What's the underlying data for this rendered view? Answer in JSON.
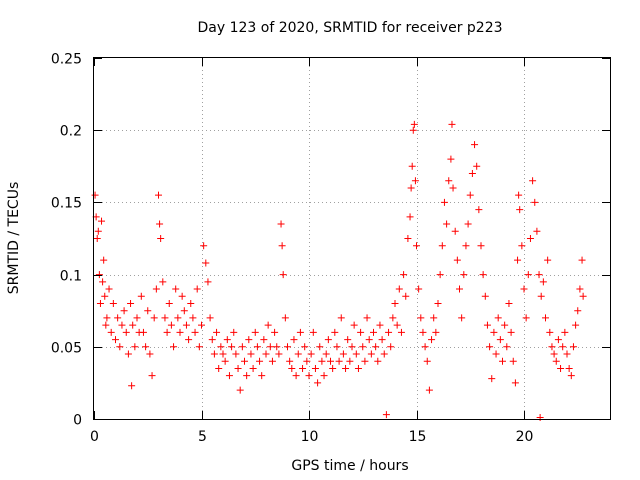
{
  "chart_data": {
    "type": "scatter",
    "title": "Day 123 of 2020, SRMTID for receiver p223",
    "xlabel": "GPS time / hours",
    "ylabel": "SRMTID / TECUs",
    "xlim": [
      0,
      24
    ],
    "ylim": [
      0,
      0.25
    ],
    "xticks": [
      0,
      5,
      10,
      15,
      20
    ],
    "xtick_labels": [
      "0",
      "5",
      "10",
      "15",
      "20"
    ],
    "yticks": [
      0,
      0.05,
      0.1,
      0.15,
      0.2,
      0.25
    ],
    "ytick_labels": [
      "0",
      "0.05",
      "0.1",
      "0.15",
      "0.2",
      "0.25"
    ],
    "grid": true,
    "marker": "+",
    "color": "#ff0000",
    "series": [
      {
        "name": "SRMTID",
        "points": [
          [
            0.05,
            0.155
          ],
          [
            0.1,
            0.14
          ],
          [
            0.15,
            0.125
          ],
          [
            0.2,
            0.13
          ],
          [
            0.25,
            0.1
          ],
          [
            0.3,
            0.08
          ],
          [
            0.35,
            0.137
          ],
          [
            0.4,
            0.095
          ],
          [
            0.45,
            0.11
          ],
          [
            0.5,
            0.085
          ],
          [
            0.55,
            0.065
          ],
          [
            0.6,
            0.07
          ],
          [
            0.7,
            0.09
          ],
          [
            0.8,
            0.06
          ],
          [
            0.9,
            0.08
          ],
          [
            1.0,
            0.055
          ],
          [
            1.1,
            0.07
          ],
          [
            1.2,
            0.05
          ],
          [
            1.3,
            0.065
          ],
          [
            1.4,
            0.075
          ],
          [
            1.5,
            0.06
          ],
          [
            1.6,
            0.045
          ],
          [
            1.7,
            0.08
          ],
          [
            1.75,
            0.023
          ],
          [
            1.8,
            0.065
          ],
          [
            1.9,
            0.05
          ],
          [
            2.0,
            0.07
          ],
          [
            2.1,
            0.06
          ],
          [
            2.2,
            0.085
          ],
          [
            2.3,
            0.06
          ],
          [
            2.4,
            0.05
          ],
          [
            2.5,
            0.075
          ],
          [
            2.6,
            0.045
          ],
          [
            2.7,
            0.03
          ],
          [
            2.8,
            0.07
          ],
          [
            2.9,
            0.09
          ],
          [
            3.0,
            0.155
          ],
          [
            3.05,
            0.135
          ],
          [
            3.1,
            0.125
          ],
          [
            3.2,
            0.095
          ],
          [
            3.3,
            0.07
          ],
          [
            3.4,
            0.06
          ],
          [
            3.5,
            0.08
          ],
          [
            3.6,
            0.065
          ],
          [
            3.7,
            0.05
          ],
          [
            3.8,
            0.09
          ],
          [
            3.9,
            0.07
          ],
          [
            4.0,
            0.06
          ],
          [
            4.1,
            0.085
          ],
          [
            4.2,
            0.075
          ],
          [
            4.3,
            0.065
          ],
          [
            4.4,
            0.055
          ],
          [
            4.5,
            0.08
          ],
          [
            4.6,
            0.07
          ],
          [
            4.7,
            0.06
          ],
          [
            4.8,
            0.09
          ],
          [
            4.9,
            0.05
          ],
          [
            5.0,
            0.065
          ],
          [
            5.1,
            0.12
          ],
          [
            5.2,
            0.108
          ],
          [
            5.3,
            0.095
          ],
          [
            5.4,
            0.07
          ],
          [
            5.5,
            0.055
          ],
          [
            5.6,
            0.045
          ],
          [
            5.7,
            0.06
          ],
          [
            5.8,
            0.035
          ],
          [
            5.9,
            0.05
          ],
          [
            6.0,
            0.045
          ],
          [
            6.1,
            0.04
          ],
          [
            6.2,
            0.055
          ],
          [
            6.3,
            0.03
          ],
          [
            6.4,
            0.05
          ],
          [
            6.5,
            0.06
          ],
          [
            6.6,
            0.045
          ],
          [
            6.7,
            0.035
          ],
          [
            6.8,
            0.02
          ],
          [
            6.9,
            0.05
          ],
          [
            7.0,
            0.04
          ],
          [
            7.1,
            0.03
          ],
          [
            7.2,
            0.055
          ],
          [
            7.3,
            0.045
          ],
          [
            7.4,
            0.035
          ],
          [
            7.5,
            0.06
          ],
          [
            7.6,
            0.05
          ],
          [
            7.7,
            0.04
          ],
          [
            7.8,
            0.03
          ],
          [
            7.9,
            0.055
          ],
          [
            8.0,
            0.045
          ],
          [
            8.1,
            0.065
          ],
          [
            8.2,
            0.05
          ],
          [
            8.3,
            0.04
          ],
          [
            8.4,
            0.06
          ],
          [
            8.5,
            0.05
          ],
          [
            8.6,
            0.045
          ],
          [
            8.7,
            0.135
          ],
          [
            8.75,
            0.12
          ],
          [
            8.8,
            0.1
          ],
          [
            8.9,
            0.07
          ],
          [
            9.0,
            0.05
          ],
          [
            9.1,
            0.04
          ],
          [
            9.2,
            0.035
          ],
          [
            9.3,
            0.055
          ],
          [
            9.4,
            0.03
          ],
          [
            9.5,
            0.045
          ],
          [
            9.6,
            0.06
          ],
          [
            9.7,
            0.035
          ],
          [
            9.8,
            0.05
          ],
          [
            9.9,
            0.04
          ],
          [
            10.0,
            0.03
          ],
          [
            10.1,
            0.045
          ],
          [
            10.2,
            0.06
          ],
          [
            10.3,
            0.035
          ],
          [
            10.4,
            0.025
          ],
          [
            10.5,
            0.05
          ],
          [
            10.6,
            0.04
          ],
          [
            10.7,
            0.03
          ],
          [
            10.8,
            0.045
          ],
          [
            10.9,
            0.055
          ],
          [
            11.0,
            0.04
          ],
          [
            11.1,
            0.035
          ],
          [
            11.2,
            0.06
          ],
          [
            11.3,
            0.05
          ],
          [
            11.4,
            0.04
          ],
          [
            11.5,
            0.07
          ],
          [
            11.6,
            0.045
          ],
          [
            11.7,
            0.035
          ],
          [
            11.8,
            0.055
          ],
          [
            11.9,
            0.04
          ],
          [
            12.0,
            0.05
          ],
          [
            12.1,
            0.065
          ],
          [
            12.2,
            0.045
          ],
          [
            12.3,
            0.035
          ],
          [
            12.4,
            0.06
          ],
          [
            12.5,
            0.05
          ],
          [
            12.6,
            0.04
          ],
          [
            12.7,
            0.07
          ],
          [
            12.8,
            0.055
          ],
          [
            12.9,
            0.045
          ],
          [
            13.0,
            0.06
          ],
          [
            13.1,
            0.05
          ],
          [
            13.2,
            0.04
          ],
          [
            13.3,
            0.065
          ],
          [
            13.4,
            0.055
          ],
          [
            13.5,
            0.045
          ],
          [
            13.6,
            0.003
          ],
          [
            13.7,
            0.06
          ],
          [
            13.8,
            0.05
          ],
          [
            13.9,
            0.07
          ],
          [
            14.0,
            0.08
          ],
          [
            14.1,
            0.065
          ],
          [
            14.2,
            0.09
          ],
          [
            14.3,
            0.06
          ],
          [
            14.4,
            0.1
          ],
          [
            14.5,
            0.085
          ],
          [
            14.6,
            0.125
          ],
          [
            14.7,
            0.14
          ],
          [
            14.75,
            0.16
          ],
          [
            14.8,
            0.175
          ],
          [
            14.85,
            0.2
          ],
          [
            14.9,
            0.204
          ],
          [
            14.95,
            0.165
          ],
          [
            15.0,
            0.12
          ],
          [
            15.1,
            0.09
          ],
          [
            15.2,
            0.07
          ],
          [
            15.3,
            0.06
          ],
          [
            15.4,
            0.05
          ],
          [
            15.5,
            0.04
          ],
          [
            15.6,
            0.02
          ],
          [
            15.7,
            0.055
          ],
          [
            15.8,
            0.07
          ],
          [
            15.9,
            0.06
          ],
          [
            16.0,
            0.08
          ],
          [
            16.1,
            0.1
          ],
          [
            16.2,
            0.12
          ],
          [
            16.3,
            0.15
          ],
          [
            16.4,
            0.135
          ],
          [
            16.5,
            0.165
          ],
          [
            16.6,
            0.18
          ],
          [
            16.65,
            0.204
          ],
          [
            16.7,
            0.16
          ],
          [
            16.8,
            0.13
          ],
          [
            16.9,
            0.11
          ],
          [
            17.0,
            0.09
          ],
          [
            17.1,
            0.07
          ],
          [
            17.2,
            0.1
          ],
          [
            17.3,
            0.12
          ],
          [
            17.4,
            0.135
          ],
          [
            17.5,
            0.155
          ],
          [
            17.6,
            0.17
          ],
          [
            17.7,
            0.19
          ],
          [
            17.8,
            0.175
          ],
          [
            17.9,
            0.145
          ],
          [
            18.0,
            0.12
          ],
          [
            18.1,
            0.1
          ],
          [
            18.2,
            0.085
          ],
          [
            18.3,
            0.065
          ],
          [
            18.4,
            0.05
          ],
          [
            18.5,
            0.028
          ],
          [
            18.6,
            0.06
          ],
          [
            18.7,
            0.045
          ],
          [
            18.8,
            0.07
          ],
          [
            18.9,
            0.055
          ],
          [
            19.0,
            0.04
          ],
          [
            19.1,
            0.065
          ],
          [
            19.2,
            0.05
          ],
          [
            19.3,
            0.08
          ],
          [
            19.4,
            0.06
          ],
          [
            19.5,
            0.04
          ],
          [
            19.6,
            0.025
          ],
          [
            19.7,
            0.11
          ],
          [
            19.75,
            0.155
          ],
          [
            19.8,
            0.145
          ],
          [
            19.9,
            0.12
          ],
          [
            20.0,
            0.09
          ],
          [
            20.1,
            0.07
          ],
          [
            20.2,
            0.1
          ],
          [
            20.3,
            0.125
          ],
          [
            20.4,
            0.165
          ],
          [
            20.5,
            0.15
          ],
          [
            20.6,
            0.13
          ],
          [
            20.7,
            0.1
          ],
          [
            20.75,
            0.001
          ],
          [
            20.8,
            0.085
          ],
          [
            20.9,
            0.095
          ],
          [
            21.0,
            0.07
          ],
          [
            21.1,
            0.11
          ],
          [
            21.2,
            0.06
          ],
          [
            21.3,
            0.05
          ],
          [
            21.4,
            0.045
          ],
          [
            21.5,
            0.04
          ],
          [
            21.6,
            0.055
          ],
          [
            21.7,
            0.035
          ],
          [
            21.8,
            0.05
          ],
          [
            21.9,
            0.06
          ],
          [
            22.0,
            0.045
          ],
          [
            22.1,
            0.035
          ],
          [
            22.2,
            0.03
          ],
          [
            22.3,
            0.05
          ],
          [
            22.4,
            0.065
          ],
          [
            22.5,
            0.075
          ],
          [
            22.6,
            0.09
          ],
          [
            22.7,
            0.11
          ],
          [
            22.75,
            0.085
          ]
        ]
      }
    ]
  }
}
